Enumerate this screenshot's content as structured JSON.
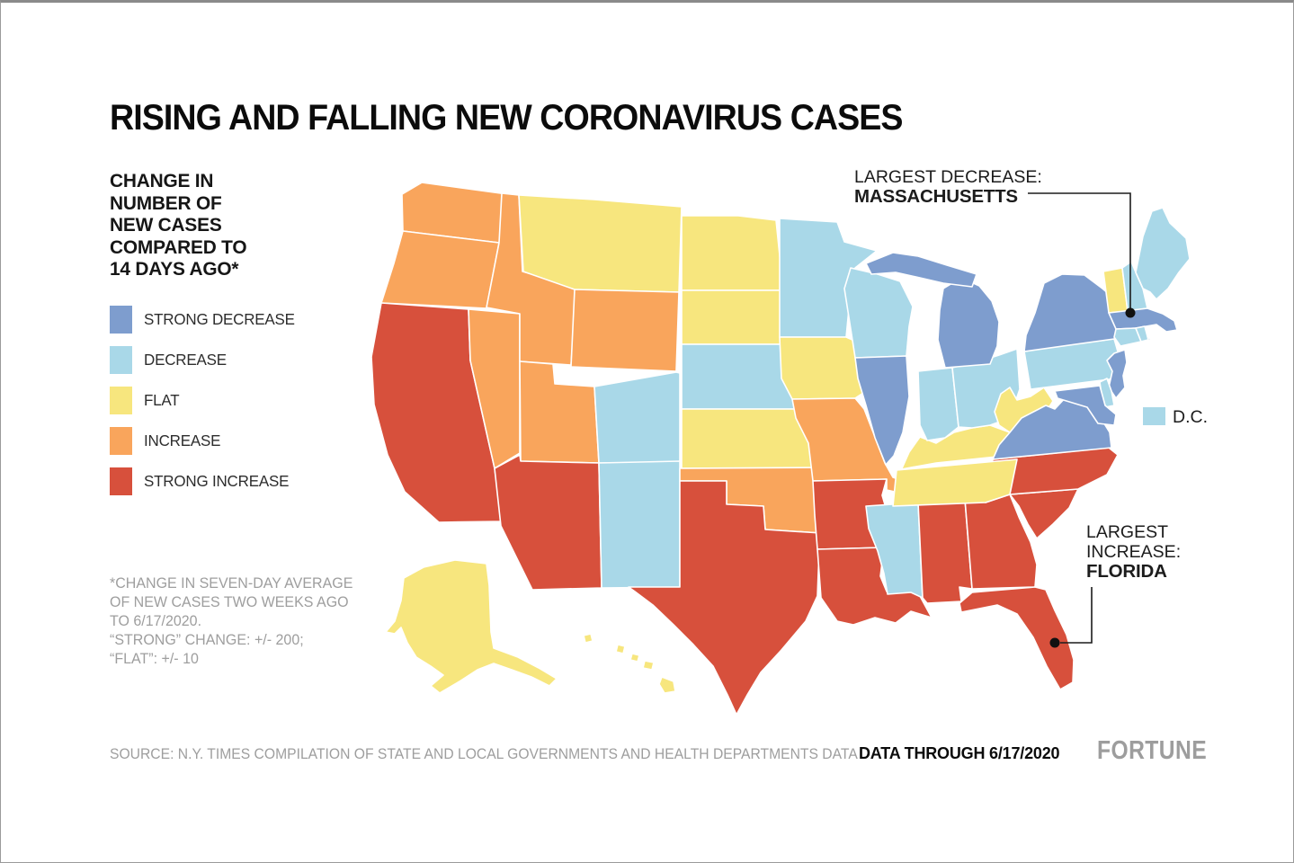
{
  "title": "RISING AND FALLING NEW CORONAVIRUS CASES",
  "legend": {
    "heading": "CHANGE IN\nNUMBER OF\nNEW CASES\nCOMPARED TO\n14 DAYS AGO*",
    "items": [
      {
        "key": "strong_decrease",
        "label": "STRONG DECREASE",
        "color": "#7E9DCE"
      },
      {
        "key": "decrease",
        "label": "DECREASE",
        "color": "#A9D8E8"
      },
      {
        "key": "flat",
        "label": "FLAT",
        "color": "#F7E67E"
      },
      {
        "key": "increase",
        "label": "INCREASE",
        "color": "#F9A55C"
      },
      {
        "key": "strong_increase",
        "label": "STRONG INCREASE",
        "color": "#D7503C"
      }
    ]
  },
  "footnote": "*CHANGE IN SEVEN-DAY AVERAGE\nOF NEW CASES TWO WEEKS AGO\nTO 6/17/2020.\n“STRONG” CHANGE: +/- 200;\n“FLAT”: +/- 10",
  "annotations": {
    "largest_decrease": {
      "label": "LARGEST DECREASE:",
      "state": "MASSACHUSETTS"
    },
    "largest_increase": {
      "label": "LARGEST\nINCREASE:",
      "state": "FLORIDA"
    },
    "dc": {
      "label": "D.C.",
      "category": "decrease"
    }
  },
  "footer": {
    "source": "SOURCE: N.Y. TIMES COMPILATION OF STATE AND LOCAL GOVERNMENTS AND HEALTH DEPARTMENTS DATA",
    "data_through": "DATA THROUGH 6/17/2020",
    "brand": "FORTUNE"
  },
  "chart_data": {
    "type": "choropleth",
    "title": "Change in number of new coronavirus cases compared to 14 days ago",
    "categories": [
      "strong_decrease",
      "decrease",
      "flat",
      "increase",
      "strong_increase"
    ],
    "category_labels": [
      "STRONG DECREASE",
      "DECREASE",
      "FLAT",
      "INCREASE",
      "STRONG INCREASE"
    ],
    "notes": {
      "largest_decrease": "MASSACHUSETTS",
      "largest_increase": "FLORIDA",
      "data_through": "6/17/2020"
    },
    "states": {
      "WA": "increase",
      "OR": "increase",
      "CA": "strong_increase",
      "NV": "increase",
      "ID": "increase",
      "MT": "flat",
      "WY": "increase",
      "UT": "increase",
      "CO": "decrease",
      "AZ": "strong_increase",
      "NM": "decrease",
      "AK": "flat",
      "HI": "flat",
      "ND": "flat",
      "SD": "flat",
      "NE": "decrease",
      "KS": "flat",
      "OK": "increase",
      "TX": "strong_increase",
      "MN": "decrease",
      "IA": "flat",
      "MO": "increase",
      "AR": "strong_increase",
      "LA": "strong_increase",
      "WI": "decrease",
      "IL": "strong_decrease",
      "MI": "strong_decrease",
      "IN": "decrease",
      "OH": "decrease",
      "KY": "flat",
      "TN": "flat",
      "MS": "decrease",
      "AL": "strong_increase",
      "GA": "strong_increase",
      "SC": "strong_increase",
      "NC": "strong_increase",
      "FL": "strong_increase",
      "VA": "strong_decrease",
      "WV": "flat",
      "MD": "strong_decrease",
      "DE": "decrease",
      "DC": "decrease",
      "PA": "decrease",
      "NJ": "strong_decrease",
      "NY": "strong_decrease",
      "CT": "decrease",
      "RI": "decrease",
      "MA": "strong_decrease",
      "VT": "flat",
      "NH": "decrease",
      "ME": "decrease"
    }
  }
}
